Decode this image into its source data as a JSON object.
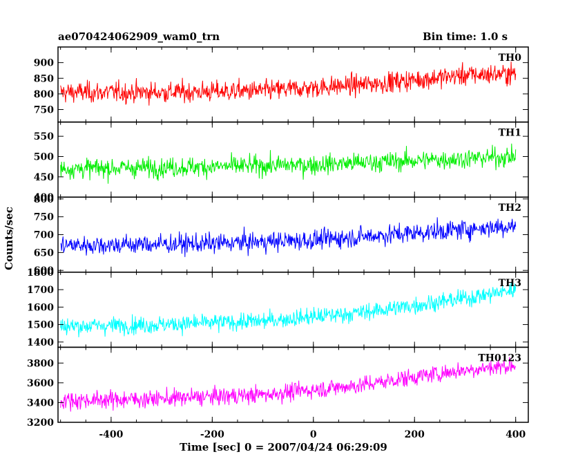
{
  "header": {
    "title": "ae070424062909_wam0_trn",
    "bin_time": "Bin time: 1.0 s"
  },
  "chart_data": {
    "type": "line",
    "xlabel": "Time [sec] 0 = 2007/04/24 06:29:09",
    "ylabel": "Counts/sec",
    "xlim": [
      -505,
      425
    ],
    "xticks": [
      -400,
      -200,
      0,
      200,
      400
    ],
    "x_start": -500,
    "x_end": 400,
    "bin": 1.0,
    "panels": [
      {
        "name": "TH0",
        "color": "#ff0000",
        "ylim": [
          710,
          950
        ],
        "yticks": [
          750,
          800,
          850,
          900
        ],
        "trend": [
          [
            -500,
            805
          ],
          [
            -300,
            805
          ],
          [
            -100,
            810
          ],
          [
            100,
            830
          ],
          [
            200,
            845
          ],
          [
            300,
            860
          ],
          [
            400,
            865
          ]
        ],
        "noise": 30
      },
      {
        "name": "TH1",
        "color": "#00ee00",
        "ylim": [
          400,
          585
        ],
        "yticks": [
          400,
          450,
          500,
          550
        ],
        "trend": [
          [
            -500,
            470
          ],
          [
            -200,
            475
          ],
          [
            0,
            480
          ],
          [
            200,
            490
          ],
          [
            400,
            500
          ]
        ],
        "noise": 22
      },
      {
        "name": "TH2",
        "color": "#0000ff",
        "ylim": [
          595,
          805
        ],
        "yticks": [
          600,
          650,
          700,
          750,
          800
        ],
        "trend": [
          [
            -500,
            670
          ],
          [
            -200,
            675
          ],
          [
            0,
            685
          ],
          [
            200,
            705
          ],
          [
            400,
            725
          ]
        ],
        "noise": 25
      },
      {
        "name": "TH3",
        "color": "#00ffff",
        "ylim": [
          1370,
          1800
        ],
        "yticks": [
          1400,
          1500,
          1600,
          1700,
          1800
        ],
        "trend": [
          [
            -500,
            1490
          ],
          [
            -300,
            1500
          ],
          [
            -100,
            1520
          ],
          [
            100,
            1570
          ],
          [
            200,
            1610
          ],
          [
            300,
            1650
          ],
          [
            400,
            1700
          ]
        ],
        "noise": 45
      },
      {
        "name": "TH0123",
        "color": "#ff00ff",
        "ylim": [
          3200,
          3960
        ],
        "yticks": [
          3200,
          3400,
          3600,
          3800
        ],
        "trend": [
          [
            -500,
            3420
          ],
          [
            -300,
            3440
          ],
          [
            -100,
            3480
          ],
          [
            100,
            3580
          ],
          [
            200,
            3660
          ],
          [
            300,
            3730
          ],
          [
            400,
            3780
          ]
        ],
        "noise": 80
      }
    ]
  }
}
